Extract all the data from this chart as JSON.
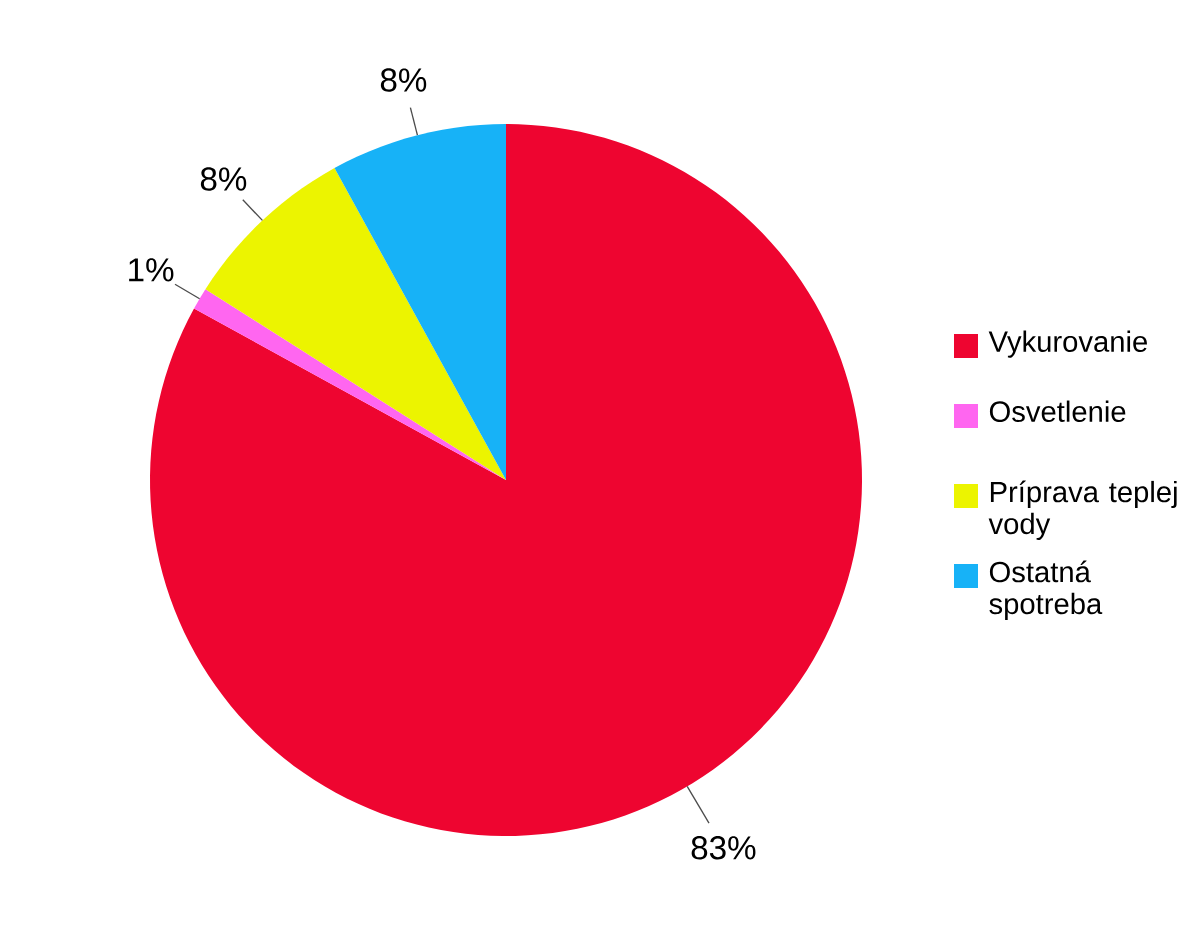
{
  "chart_data": {
    "type": "pie",
    "categories": [
      "Vykurovanie",
      "Osvetlenie",
      "Príprava teplej vody",
      "Ostatná spotreba"
    ],
    "values": [
      83,
      1,
      8,
      8
    ],
    "colors": [
      "#ee0530",
      "#ff66f0",
      "#ecf400",
      "#17b2f7"
    ],
    "value_labels": [
      "83%",
      "1%",
      "8%",
      "8%"
    ],
    "legend": "right"
  }
}
